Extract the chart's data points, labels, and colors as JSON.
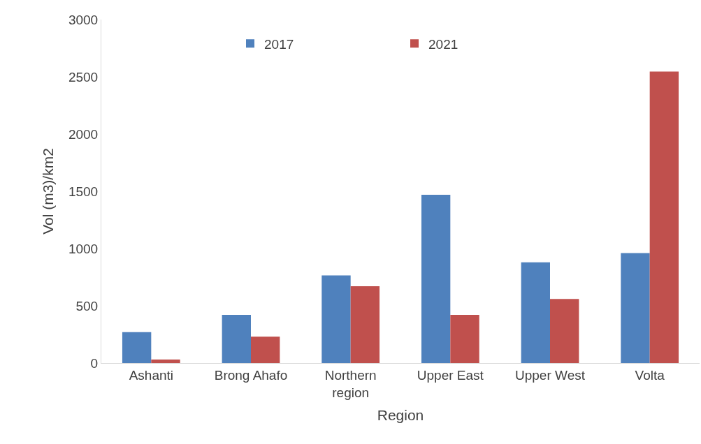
{
  "chart_data": {
    "type": "bar",
    "xlabel": "Region",
    "ylabel": "Vol (m3)/km2",
    "categories": [
      "Ashanti",
      "Brong Ahafo",
      "Northern region",
      "Upper East",
      "Upper West",
      "Volta"
    ],
    "series": [
      {
        "name": "2017",
        "color": "#4f81bd",
        "values": [
          270,
          420,
          765,
          1470,
          880,
          960
        ]
      },
      {
        "name": "2021",
        "color": "#c0504d",
        "values": [
          30,
          230,
          670,
          420,
          560,
          2545
        ]
      }
    ],
    "ylim": [
      0,
      3000
    ],
    "yticks": [
      0,
      500,
      1000,
      1500,
      2000,
      2500,
      3000
    ],
    "grid": false,
    "legend": "top"
  }
}
